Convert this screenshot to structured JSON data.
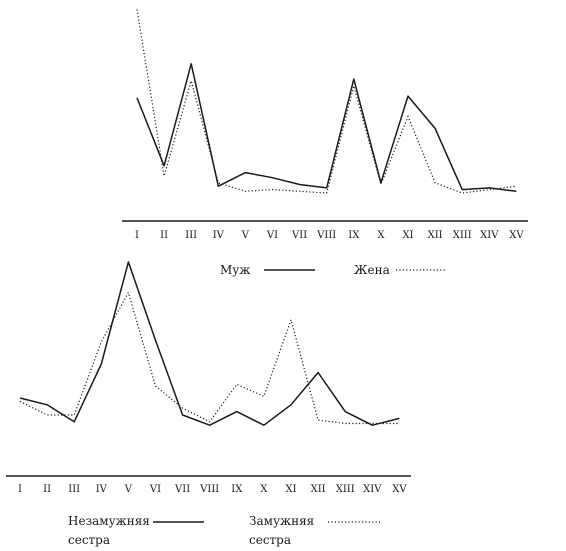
{
  "chart_data": [
    {
      "type": "line",
      "categories": [
        "I",
        "II",
        "III",
        "IV",
        "V",
        "VI",
        "VII",
        "VIII",
        "IX",
        "X",
        "XI",
        "XII",
        "XIII",
        "XIV",
        "XV"
      ],
      "series": [
        {
          "name": "Муж",
          "style": "solid",
          "values": [
            56,
            16,
            76,
            4,
            12,
            9,
            5,
            3,
            67,
            6,
            57,
            38,
            2,
            3,
            1
          ]
        },
        {
          "name": "Жена",
          "style": "dotted",
          "values": [
            108,
            10,
            66,
            6,
            1,
            2,
            1,
            0,
            63,
            5,
            45,
            6,
            0,
            2,
            4
          ]
        }
      ],
      "ylim": [
        0,
        110
      ],
      "grid": false,
      "legend": "bottom"
    },
    {
      "type": "line",
      "categories": [
        "I",
        "II",
        "III",
        "IV",
        "V",
        "VI",
        "VII",
        "VIII",
        "IX",
        "X",
        "XI",
        "XII",
        "XIII",
        "XIV",
        "XV"
      ],
      "series": [
        {
          "name": "Незамужняя сестра",
          "style": "solid",
          "values": [
            30,
            26,
            16,
            50,
            110,
            64,
            20,
            14,
            22,
            14,
            26,
            45,
            22,
            14,
            18
          ]
        },
        {
          "name": "Замужняя сестра",
          "style": "dotted",
          "values": [
            28,
            20,
            20,
            63,
            92,
            37,
            24,
            16,
            38,
            31,
            76,
            17,
            15,
            15,
            15
          ]
        }
      ],
      "ylim": [
        0,
        115
      ],
      "grid": false,
      "legend": "bottom"
    }
  ],
  "legend": {
    "top": [
      {
        "label": "Муж",
        "style": "solid"
      },
      {
        "label": "Жена",
        "style": "dotted"
      }
    ],
    "bottom": [
      {
        "label_line1": "Незамужняя",
        "label_line2": "сестра",
        "style": "solid"
      },
      {
        "label_line1": "Замужняя",
        "label_line2": "сестра",
        "style": "dotted"
      }
    ]
  }
}
